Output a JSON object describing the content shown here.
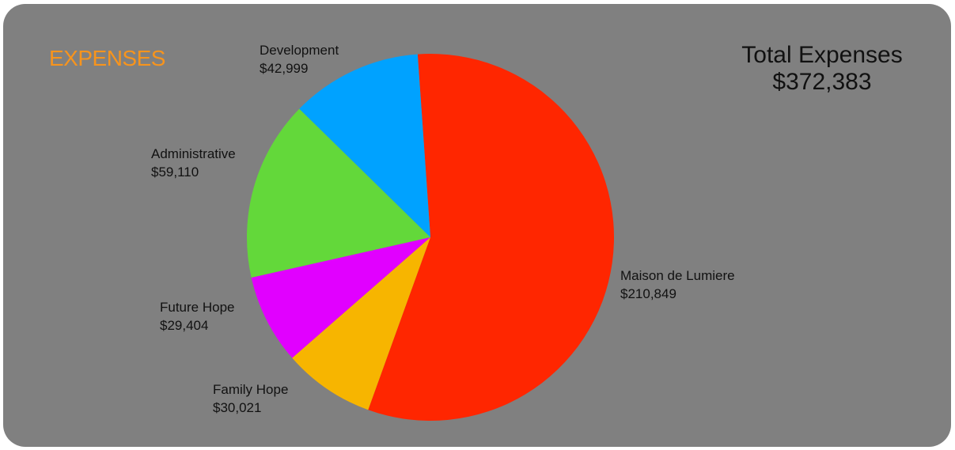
{
  "chart_data": {
    "type": "pie",
    "title": "EXPENSES",
    "total_label": "Total Expenses",
    "total_value": "$372,383",
    "slices": [
      {
        "label": "Maison de Lumiere",
        "value": 210849,
        "value_text": "$210,849",
        "color": "#ff2600"
      },
      {
        "label": "Family Hope",
        "value": 30021,
        "value_text": "$30,021",
        "color": "#f7b500"
      },
      {
        "label": "Future Hope",
        "value": 29404,
        "value_text": "$29,404",
        "color": "#e100ff"
      },
      {
        "label": "Administrative",
        "value": 59110,
        "value_text": "$59,110",
        "color": "#63d83a"
      },
      {
        "label": "Development",
        "value": 42999,
        "value_text": "$42,999",
        "color": "#00a2ff"
      }
    ]
  },
  "colors": {
    "background": "#808080",
    "title": "#f7941d",
    "text": "#111111"
  }
}
